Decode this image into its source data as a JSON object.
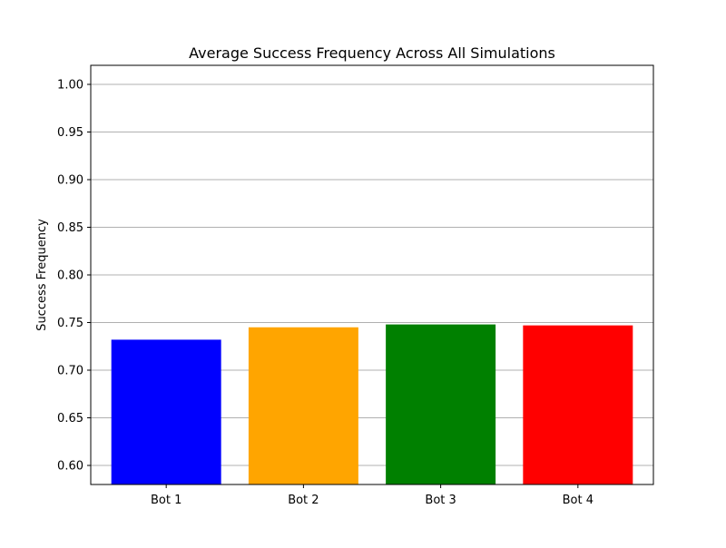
{
  "chart_data": {
    "type": "bar",
    "title": "Average Success Frequency Across All Simulations",
    "xlabel": "",
    "ylabel": "Success Frequency",
    "categories": [
      "Bot 1",
      "Bot 2",
      "Bot 3",
      "Bot 4"
    ],
    "values": [
      0.732,
      0.745,
      0.748,
      0.747
    ],
    "colors": [
      "#0000ff",
      "#ffa500",
      "#008000",
      "#ff0000"
    ],
    "ylim": [
      0.58,
      1.02
    ],
    "yticks": [
      0.6,
      0.65,
      0.7,
      0.75,
      0.8,
      0.85,
      0.9,
      0.95,
      1.0
    ],
    "ytick_labels": [
      "0.60",
      "0.65",
      "0.70",
      "0.75",
      "0.80",
      "0.85",
      "0.90",
      "0.95",
      "1.00"
    ],
    "grid": "y",
    "grid_color": "#b0b0b0"
  }
}
